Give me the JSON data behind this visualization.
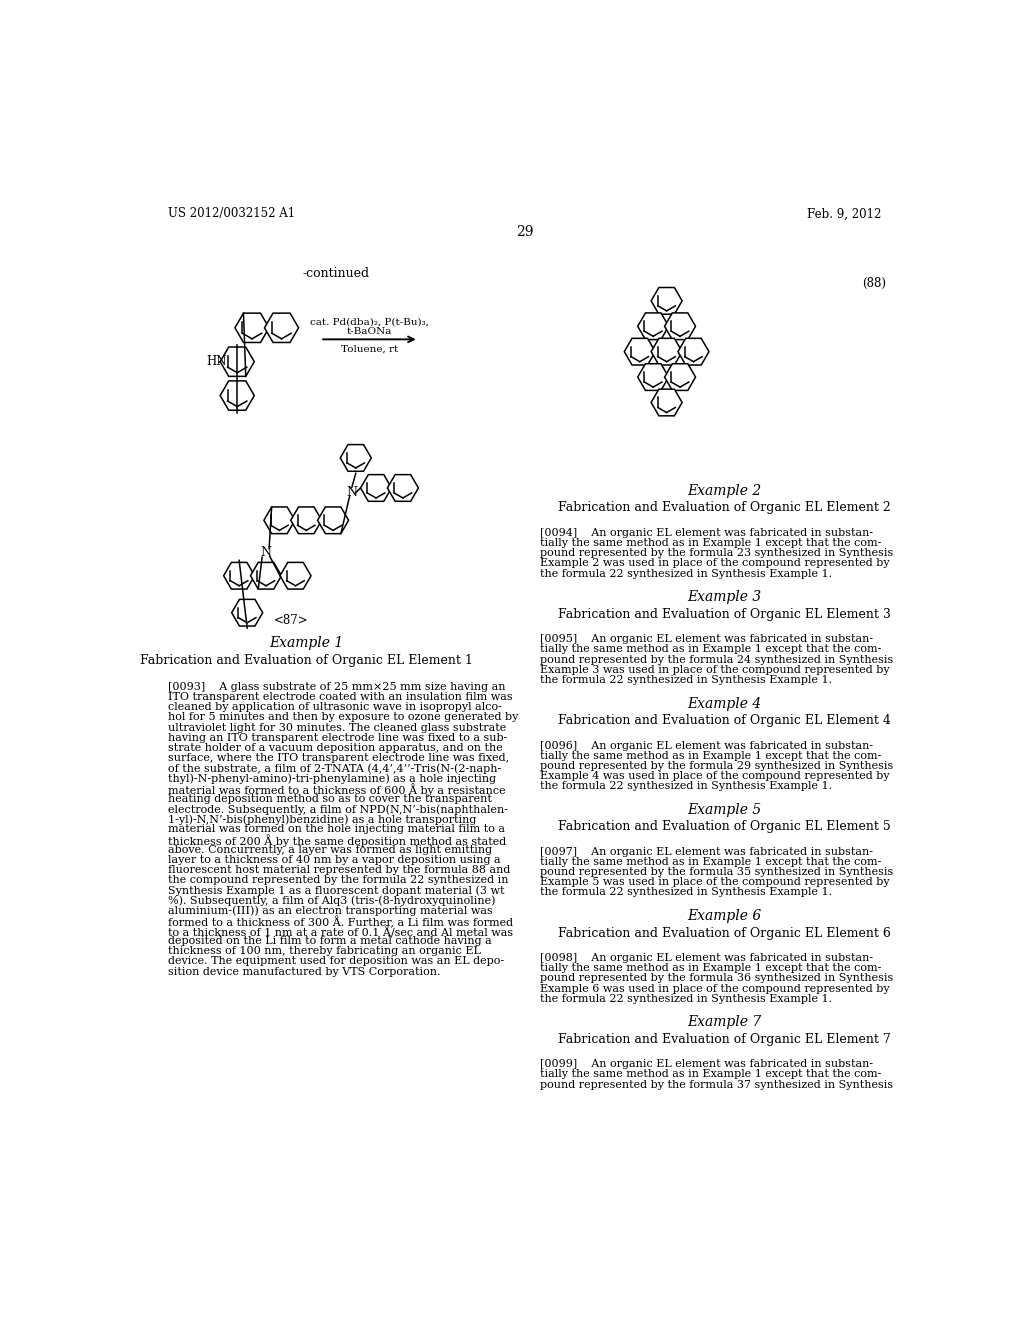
{
  "page_number": "29",
  "patent_number": "US 2012/0032152 A1",
  "patent_date": "Feb. 9, 2012",
  "background_color": "#ffffff",
  "continued_label": "-continued",
  "formula_label_88": "(88)",
  "formula_label_87": "<87>",
  "reaction_text1": "cat. Pd(dba)₂, P(t-Bu)₃,",
  "reaction_text2": "t-BaONa",
  "reaction_text3": "Toluene, rt",
  "hn_label": "HN",
  "example1_title": "Example 1",
  "example1_subtitle": "Fabrication and Evaluation of Organic EL Element 1",
  "example2_title": "Example 2",
  "example2_subtitle": "Fabrication and Evaluation of Organic EL Element 2",
  "example3_title": "Example 3",
  "example3_subtitle": "Fabrication and Evaluation of Organic EL Element 3",
  "example4_title": "Example 4",
  "example4_subtitle": "Fabrication and Evaluation of Organic EL Element 4",
  "example5_title": "Example 5",
  "example5_subtitle": "Fabrication and Evaluation of Organic EL Element 5",
  "example6_title": "Example 6",
  "example6_subtitle": "Fabrication and Evaluation of Organic EL Element 6",
  "example7_title": "Example 7",
  "example7_subtitle": "Fabrication and Evaluation of Organic EL Element 7",
  "left_col_lines": [
    "[0093]    A glass substrate of 25 mm×25 mm size having an",
    "ITO transparent electrode coated with an insulation film was",
    "cleaned by application of ultrasonic wave in isopropyl alco-",
    "hol for 5 minutes and then by exposure to ozone generated by",
    "ultraviolet light for 30 minutes. The cleaned glass substrate",
    "having an ITO transparent electrode line was fixed to a sub-",
    "strate holder of a vacuum deposition apparatus, and on the",
    "surface, where the ITO transparent electrode line was fixed,",
    "of the substrate, a film of 2-TNATA (4,4’,4’’-Tris(N-(2-naph-",
    "thyl)-N-phenyl-amino)-tri-phenylamine) as a hole injecting",
    "material was formed to a thickness of 600 Å by a resistance",
    "heating deposition method so as to cover the transparent",
    "electrode. Subsequently, a film of NPD(N,N’-bis(naphthalen-",
    "1-yl)-N,N’-bis(phenyl)benzidine) as a hole transporting",
    "material was formed on the hole injecting material film to a",
    "thickness of 200 Å by the same deposition method as stated",
    "above. Concurrently, a layer was formed as light emitting",
    "layer to a thickness of 40 nm by a vapor deposition using a",
    "fluorescent host material represented by the formula 88 and",
    "the compound represented by the formula 22 synthesized in",
    "Synthesis Example 1 as a fluorescent dopant material (3 wt",
    "%). Subsequently, a film of Alq3 (tris-(8-hydroxyquinoline)",
    "aluminium-(III)) as an electron transporting material was",
    "formed to a thickness of 300 Å. Further, a Li film was formed",
    "to a thickness of 1 nm at a rate of 0.1 Å/sec and Al metal was",
    "deposited on the Li film to form a metal cathode having a",
    "thickness of 100 nm, thereby fabricating an organic EL",
    "device. The equipment used for deposition was an EL depo-",
    "sition device manufactured by VTS Corporation."
  ],
  "ex2_lines": [
    "[0094]    An organic EL element was fabricated in substan-",
    "tially the same method as in Example 1 except that the com-",
    "pound represented by the formula 23 synthesized in Synthesis",
    "Example 2 was used in place of the compound represented by",
    "the formula 22 synthesized in Synthesis Example 1."
  ],
  "ex3_lines": [
    "[0095]    An organic EL element was fabricated in substan-",
    "tially the same method as in Example 1 except that the com-",
    "pound represented by the formula 24 synthesized in Synthesis",
    "Example 3 was used in place of the compound represented by",
    "the formula 22 synthesized in Synthesis Example 1."
  ],
  "ex4_lines": [
    "[0096]    An organic EL element was fabricated in substan-",
    "tially the same method as in Example 1 except that the com-",
    "pound represented by the formula 29 synthesized in Synthesis",
    "Example 4 was used in place of the compound represented by",
    "the formula 22 synthesized in Synthesis Example 1."
  ],
  "ex5_lines": [
    "[0097]    An organic EL element was fabricated in substan-",
    "tially the same method as in Example 1 except that the com-",
    "pound represented by the formula 35 synthesized in Synthesis",
    "Example 5 was used in place of the compound represented by",
    "the formula 22 synthesized in Synthesis Example 1."
  ],
  "ex6_lines": [
    "[0098]    An organic EL element was fabricated in substan-",
    "tially the same method as in Example 1 except that the com-",
    "pound represented by the formula 36 synthesized in Synthesis",
    "Example 6 was used in place of the compound represented by",
    "the formula 22 synthesized in Synthesis Example 1."
  ],
  "ex7_lines": [
    "[0099]    An organic EL element was fabricated in substan-",
    "tially the same method as in Example 1 except that the com-",
    "pound represented by the formula 37 synthesized in Synthesis"
  ]
}
